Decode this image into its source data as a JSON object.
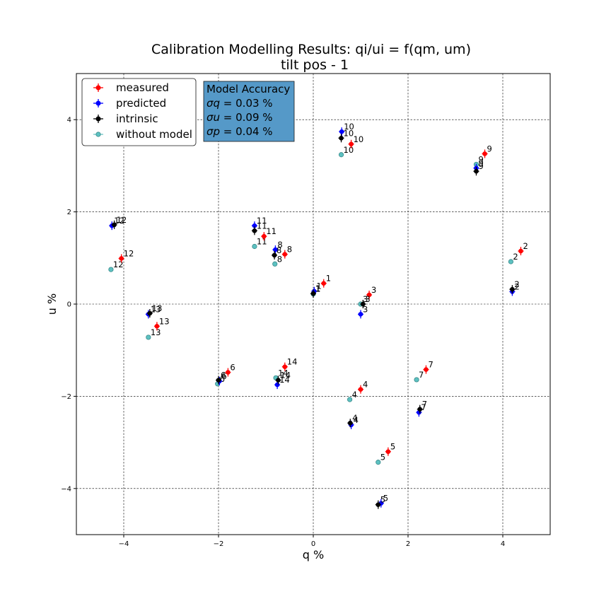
{
  "chart_data": {
    "type": "scatter",
    "title": "Calibration Modelling Results: qi/ui = f(qm, um)",
    "subtitle": "tilt pos - 1",
    "xlabel": "q %",
    "ylabel": "u %",
    "xlim": [
      -5,
      5
    ],
    "ylim": [
      -5,
      5
    ],
    "xticks": [
      -4,
      -2,
      0,
      2,
      4
    ],
    "yticks": [
      -4,
      -2,
      0,
      2,
      4
    ],
    "grid": true,
    "legend_position": "top-left",
    "accuracy_box": {
      "title": "Model Accuracy",
      "lines": [
        {
          "symbol": "σq",
          "text": " = 0.03 %"
        },
        {
          "symbol": "σu",
          "text": " = 0.09 %"
        },
        {
          "symbol": "σp",
          "text": " = 0.04 %"
        }
      ],
      "color": "#5599c8"
    },
    "series": [
      {
        "name": "measured",
        "color": "#ff0000",
        "marker": "filled",
        "points": [
          {
            "label": "1",
            "x": 0.22,
            "y": 0.45
          },
          {
            "label": "2",
            "x": 4.38,
            "y": 1.15
          },
          {
            "label": "3",
            "x": 1.18,
            "y": 0.2
          },
          {
            "label": "4",
            "x": 1.0,
            "y": -1.85
          },
          {
            "label": "5",
            "x": 1.58,
            "y": -3.2
          },
          {
            "label": "6",
            "x": -1.8,
            "y": -1.48
          },
          {
            "label": "7",
            "x": 2.38,
            "y": -1.42
          },
          {
            "label": "8",
            "x": -0.6,
            "y": 1.08
          },
          {
            "label": "9",
            "x": 3.62,
            "y": 3.26
          },
          {
            "label": "10",
            "x": 0.8,
            "y": 3.47
          },
          {
            "label": "11",
            "x": -1.04,
            "y": 1.47
          },
          {
            "label": "12",
            "x": -4.05,
            "y": 0.99
          },
          {
            "label": "13",
            "x": -3.3,
            "y": -0.48
          },
          {
            "label": "14",
            "x": -0.6,
            "y": -1.36
          }
        ]
      },
      {
        "name": "predicted",
        "color": "#0000ff",
        "marker": "filled",
        "points": [
          {
            "label": "1",
            "x": 0.02,
            "y": 0.28
          },
          {
            "label": "2",
            "x": 4.2,
            "y": 0.27
          },
          {
            "label": "3",
            "x": 1.0,
            "y": -0.22
          },
          {
            "label": "4",
            "x": 0.8,
            "y": -2.62
          },
          {
            "label": "5",
            "x": 1.43,
            "y": -4.32
          },
          {
            "label": "6",
            "x": -1.98,
            "y": -1.67
          },
          {
            "label": "7",
            "x": 2.23,
            "y": -2.35
          },
          {
            "label": "8",
            "x": -0.8,
            "y": 1.18
          },
          {
            "label": "9",
            "x": 3.44,
            "y": 2.95
          },
          {
            "label": "10",
            "x": 0.6,
            "y": 3.74
          },
          {
            "label": "11",
            "x": -1.24,
            "y": 1.7
          },
          {
            "label": "12",
            "x": -4.25,
            "y": 1.7
          },
          {
            "label": "13",
            "x": -3.48,
            "y": -0.22
          },
          {
            "label": "14",
            "x": -0.76,
            "y": -1.75
          }
        ]
      },
      {
        "name": "intrinsic",
        "color": "#000000",
        "marker": "filled",
        "points": [
          {
            "label": "1",
            "x": 0.0,
            "y": 0.23
          },
          {
            "label": "2",
            "x": 4.2,
            "y": 0.32
          },
          {
            "label": "3",
            "x": 1.05,
            "y": 0.0
          },
          {
            "label": "4",
            "x": 0.78,
            "y": -2.58
          },
          {
            "label": "5",
            "x": 1.37,
            "y": -4.35
          },
          {
            "label": "6",
            "x": -2.0,
            "y": -1.65
          },
          {
            "label": "7",
            "x": 2.25,
            "y": -2.28
          },
          {
            "label": "8",
            "x": -0.82,
            "y": 1.06
          },
          {
            "label": "9",
            "x": 3.44,
            "y": 2.88
          },
          {
            "label": "10",
            "x": 0.59,
            "y": 3.6
          },
          {
            "label": "11",
            "x": -1.24,
            "y": 1.59
          },
          {
            "label": "12",
            "x": -4.2,
            "y": 1.72
          },
          {
            "label": "13",
            "x": -3.45,
            "y": -0.2
          },
          {
            "label": "14",
            "x": -0.74,
            "y": -1.65
          }
        ]
      },
      {
        "name": "without model",
        "color": "#5dc1c1",
        "marker": "open",
        "points": [
          {
            "label": "1",
            "x": 0.0,
            "y": 0.22
          },
          {
            "label": "2",
            "x": 4.17,
            "y": 0.92
          },
          {
            "label": "3",
            "x": 1.0,
            "y": 0.0
          },
          {
            "label": "4",
            "x": 0.77,
            "y": -2.07
          },
          {
            "label": "5",
            "x": 1.37,
            "y": -3.43
          },
          {
            "label": "6",
            "x": -2.02,
            "y": -1.73
          },
          {
            "label": "7",
            "x": 2.18,
            "y": -1.64
          },
          {
            "label": "8",
            "x": -0.81,
            "y": 0.87
          },
          {
            "label": "9",
            "x": 3.44,
            "y": 3.03
          },
          {
            "label": "10",
            "x": 0.59,
            "y": 3.24
          },
          {
            "label": "11",
            "x": -1.24,
            "y": 1.25
          },
          {
            "label": "12",
            "x": -4.27,
            "y": 0.75
          },
          {
            "label": "13",
            "x": -3.48,
            "y": -0.72
          },
          {
            "label": "14",
            "x": -0.79,
            "y": -1.6
          }
        ]
      }
    ]
  }
}
